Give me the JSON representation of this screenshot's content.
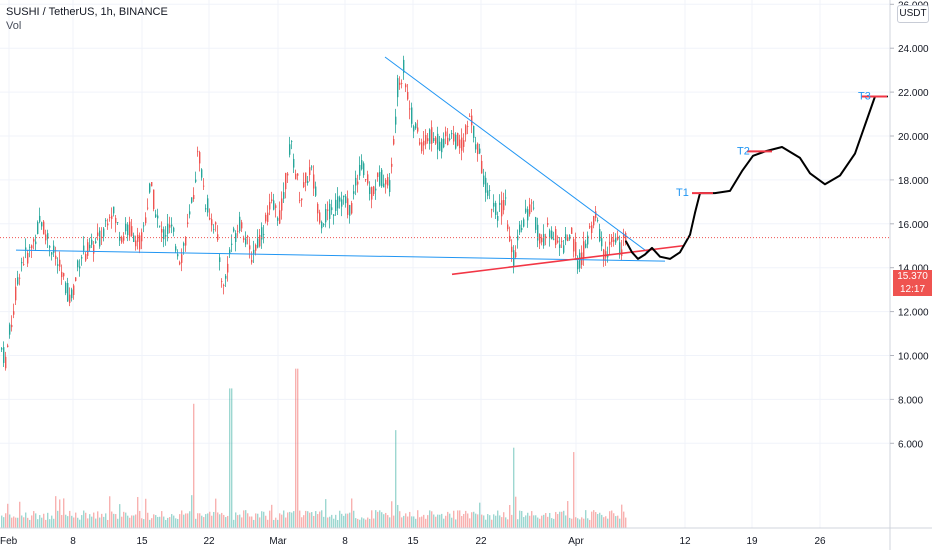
{
  "chart_data": {
    "type": "candlestick",
    "title": "SUSHI / TetherUS, 1h, BINANCE",
    "subtitle": "Vol",
    "y_unit": "USDT",
    "ylim": [
      4,
      27.5
    ],
    "y_ticks": [
      "6.000",
      "8.000",
      "10.000",
      "12.000",
      "14.000",
      "16.000",
      "18.000",
      "20.000",
      "22.000",
      "24.000",
      "26.000"
    ],
    "x_ticks": [
      "Feb",
      "8",
      "15",
      "22",
      "Mar",
      "8",
      "15",
      "22",
      "Apr",
      "12",
      "19",
      "26"
    ],
    "grid": true,
    "current_price": "15.370",
    "countdown": "12:17",
    "price_path": [
      [
        0,
        10.4
      ],
      [
        5,
        9.8
      ],
      [
        10,
        11.3
      ],
      [
        20,
        14.2
      ],
      [
        30,
        14.8
      ],
      [
        40,
        16.2
      ],
      [
        50,
        15.0
      ],
      [
        60,
        13.8
      ],
      [
        70,
        12.5
      ],
      [
        80,
        14.6
      ],
      [
        90,
        14.8
      ],
      [
        100,
        15.4
      ],
      [
        110,
        16.8
      ],
      [
        120,
        15.5
      ],
      [
        130,
        15.8
      ],
      [
        140,
        15.0
      ],
      [
        150,
        17.8
      ],
      [
        160,
        15.5
      ],
      [
        170,
        15.8
      ],
      [
        180,
        14.4
      ],
      [
        190,
        16.4
      ],
      [
        198,
        19.4
      ],
      [
        205,
        17.0
      ],
      [
        215,
        15.8
      ],
      [
        223,
        13.0
      ],
      [
        230,
        15.0
      ],
      [
        240,
        16.2
      ],
      [
        250,
        14.5
      ],
      [
        260,
        15.5
      ],
      [
        270,
        16.8
      ],
      [
        280,
        16.4
      ],
      [
        290,
        19.6
      ],
      [
        300,
        17.2
      ],
      [
        310,
        18.6
      ],
      [
        320,
        16.2
      ],
      [
        330,
        16.5
      ],
      [
        340,
        17.2
      ],
      [
        350,
        16.6
      ],
      [
        360,
        18.8
      ],
      [
        370,
        17.4
      ],
      [
        380,
        18.2
      ],
      [
        390,
        17.8
      ],
      [
        397,
        22.2
      ],
      [
        403,
        23.1
      ],
      [
        410,
        21.0
      ],
      [
        420,
        19.6
      ],
      [
        430,
        20.0
      ],
      [
        440,
        19.6
      ],
      [
        450,
        20.2
      ],
      [
        460,
        19.5
      ],
      [
        470,
        20.8
      ],
      [
        478,
        19.2
      ],
      [
        485,
        17.8
      ],
      [
        495,
        16.5
      ],
      [
        505,
        16.8
      ],
      [
        512,
        14.2
      ],
      [
        520,
        16.0
      ],
      [
        530,
        16.8
      ],
      [
        540,
        15.2
      ],
      [
        550,
        15.8
      ],
      [
        560,
        14.9
      ],
      [
        570,
        15.6
      ],
      [
        578,
        14.2
      ],
      [
        585,
        15.0
      ],
      [
        595,
        16.4
      ],
      [
        603,
        14.6
      ],
      [
        612,
        15.2
      ],
      [
        620,
        14.9
      ],
      [
        626,
        15.3
      ]
    ],
    "volume_spikes": [
      [
        193,
        7.8
      ],
      [
        230,
        8.5
      ],
      [
        296,
        9.4
      ],
      [
        395,
        6.6
      ],
      [
        479,
        6.4
      ],
      [
        513,
        5.8
      ],
      [
        573,
        5.6
      ]
    ],
    "annotations": {
      "lines": [
        {
          "name": "resistance-trendline",
          "color": "#2196f3",
          "x1": 385,
          "y1": 23.6,
          "x2": 648,
          "y2": 14.7
        },
        {
          "name": "support-trendline",
          "color": "#2196f3",
          "x1": 16,
          "y1": 14.8,
          "x2": 665,
          "y2": 14.3
        },
        {
          "name": "rising-trendline",
          "color": "#f23645",
          "x1": 452,
          "y1": 13.7,
          "x2": 683,
          "y2": 15.0
        }
      ],
      "targets": [
        {
          "label": "T1",
          "value": 17.4,
          "x_start": 692,
          "x_end": 713,
          "label_x": 676
        },
        {
          "label": "T2",
          "value": 19.3,
          "x_start": 747,
          "x_end": 772,
          "label_x": 737
        },
        {
          "label": "T3",
          "value": 21.8,
          "x_start": 861,
          "x_end": 887,
          "label_x": 858
        }
      ],
      "projection_path": [
        [
          626,
          15.2
        ],
        [
          632,
          14.7
        ],
        [
          638,
          14.4
        ],
        [
          645,
          14.6
        ],
        [
          652,
          14.9
        ],
        [
          660,
          14.5
        ],
        [
          670,
          14.4
        ],
        [
          680,
          14.7
        ],
        [
          690,
          15.5
        ],
        [
          695,
          16.5
        ],
        [
          700,
          17.4
        ],
        [
          715,
          17.4
        ],
        [
          730,
          17.5
        ],
        [
          742,
          18.4
        ],
        [
          753,
          19.1
        ],
        [
          765,
          19.3
        ],
        [
          782,
          19.5
        ],
        [
          800,
          19.0
        ],
        [
          810,
          18.3
        ],
        [
          825,
          17.8
        ],
        [
          840,
          18.2
        ],
        [
          855,
          19.2
        ],
        [
          865,
          20.5
        ],
        [
          875,
          21.8
        ],
        [
          887,
          21.8
        ]
      ]
    }
  }
}
